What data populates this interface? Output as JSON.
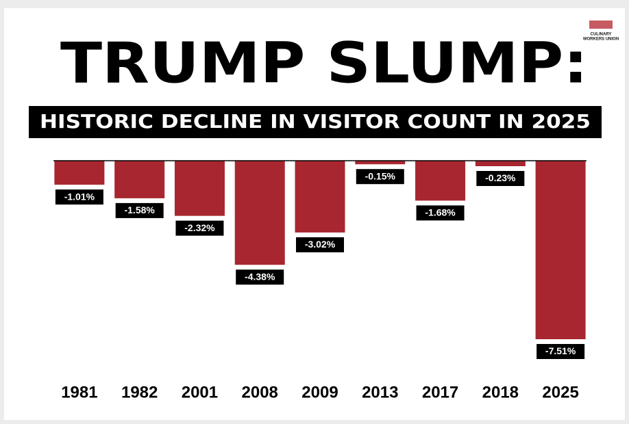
{
  "chart_data": {
    "type": "bar",
    "title": "TRUMP SLUMP:",
    "subtitle": "HISTORIC DECLINE IN VISITOR COUNT IN 2025",
    "logo": [
      "CULINARY",
      "WORKERS UNION"
    ],
    "categories": [
      "1981",
      "1982",
      "2001",
      "2008",
      "2009",
      "2013",
      "2017",
      "2018",
      "2025"
    ],
    "values": [
      -1.01,
      -1.58,
      -2.32,
      -4.38,
      -3.02,
      -0.15,
      -1.68,
      -0.23,
      -7.51
    ],
    "value_labels": [
      "-1.01%",
      "-1.58%",
      "-2.32%",
      "-4.38%",
      "-3.02%",
      "-0.15%",
      "-1.68%",
      "-0.23%",
      "-7.51%"
    ],
    "color": "#a82630"
  }
}
